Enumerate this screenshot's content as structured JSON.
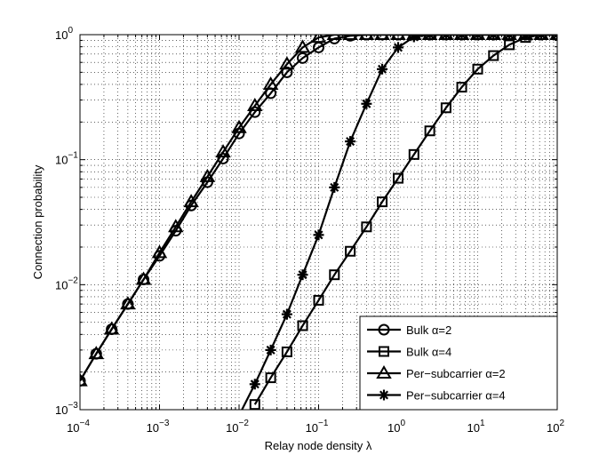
{
  "chart_data": {
    "type": "line",
    "title": "",
    "xlabel": "Relay node density λ",
    "ylabel": "Connection probability",
    "xscale": "log",
    "yscale": "log",
    "xlim": [
      0.0001,
      100
    ],
    "ylim": [
      0.001,
      1
    ],
    "grid": true,
    "legend_position": "bottom-right",
    "x_tick_labels": [
      {
        "base": "10",
        "exp": "−4",
        "value": 0.0001
      },
      {
        "base": "10",
        "exp": "−3",
        "value": 0.001
      },
      {
        "base": "10",
        "exp": "−2",
        "value": 0.01
      },
      {
        "base": "10",
        "exp": "−1",
        "value": 0.1
      },
      {
        "base": "10",
        "exp": "0",
        "value": 1
      },
      {
        "base": "10",
        "exp": "1",
        "value": 10
      },
      {
        "base": "10",
        "exp": "2",
        "value": 100
      }
    ],
    "y_tick_labels": [
      {
        "base": "10",
        "exp": "−3",
        "value": 0.001
      },
      {
        "base": "10",
        "exp": "−2",
        "value": 0.01
      },
      {
        "base": "10",
        "exp": "−1",
        "value": 0.1
      },
      {
        "base": "10",
        "exp": "0",
        "value": 1
      }
    ],
    "series": [
      {
        "name": "Bulk α=2",
        "marker": "circle",
        "points": [
          [
            0.0001,
            0.0017
          ],
          [
            0.00016,
            0.0028
          ],
          [
            0.00025,
            0.0044
          ],
          [
            0.0004,
            0.007
          ],
          [
            0.00063,
            0.011
          ],
          [
            0.001,
            0.017
          ],
          [
            0.0016,
            0.027
          ],
          [
            0.0025,
            0.043
          ],
          [
            0.004,
            0.066
          ],
          [
            0.0063,
            0.102
          ],
          [
            0.01,
            0.162
          ],
          [
            0.0158,
            0.24
          ],
          [
            0.025,
            0.34
          ],
          [
            0.04,
            0.5
          ],
          [
            0.063,
            0.65
          ],
          [
            0.1,
            0.79
          ],
          [
            0.158,
            0.93
          ],
          [
            0.25,
            0.98
          ],
          [
            0.4,
            1.0
          ],
          [
            0.63,
            1.0
          ],
          [
            1,
            1.0
          ],
          [
            1.58,
            1.0
          ],
          [
            2.5,
            1.0
          ],
          [
            4,
            1.0
          ],
          [
            6.3,
            1.0
          ],
          [
            10,
            1.0
          ],
          [
            15.8,
            1.0
          ],
          [
            25,
            1.0
          ],
          [
            40,
            1.0
          ],
          [
            63,
            1.0
          ],
          [
            100,
            1.0
          ]
        ]
      },
      {
        "name": "Bulk α=4",
        "marker": "square",
        "points": [
          [
            0.0158,
            0.0011
          ],
          [
            0.025,
            0.0018
          ],
          [
            0.04,
            0.0029
          ],
          [
            0.063,
            0.0047
          ],
          [
            0.1,
            0.0075
          ],
          [
            0.158,
            0.012
          ],
          [
            0.25,
            0.0185
          ],
          [
            0.4,
            0.029
          ],
          [
            0.63,
            0.046
          ],
          [
            1,
            0.071
          ],
          [
            1.58,
            0.11
          ],
          [
            2.5,
            0.17
          ],
          [
            4,
            0.26
          ],
          [
            6.3,
            0.38
          ],
          [
            10,
            0.53
          ],
          [
            15.8,
            0.68
          ],
          [
            25,
            0.83
          ],
          [
            40,
            0.95
          ],
          [
            63,
            1.0
          ],
          [
            100,
            1.0
          ]
        ]
      },
      {
        "name": "Per−subcarrier α=2",
        "marker": "triangle",
        "points": [
          [
            0.0001,
            0.0017
          ],
          [
            0.00016,
            0.0028
          ],
          [
            0.00025,
            0.0044
          ],
          [
            0.0004,
            0.007
          ],
          [
            0.00063,
            0.011
          ],
          [
            0.001,
            0.018
          ],
          [
            0.0016,
            0.029
          ],
          [
            0.0025,
            0.046
          ],
          [
            0.004,
            0.073
          ],
          [
            0.0063,
            0.115
          ],
          [
            0.01,
            0.18
          ],
          [
            0.0158,
            0.27
          ],
          [
            0.025,
            0.4
          ],
          [
            0.04,
            0.58
          ],
          [
            0.063,
            0.79
          ],
          [
            0.1,
            0.95
          ],
          [
            0.158,
            1.0
          ],
          [
            0.25,
            1.0
          ],
          [
            0.4,
            1.0
          ],
          [
            0.63,
            1.0
          ],
          [
            1,
            1.0
          ],
          [
            1.58,
            1.0
          ],
          [
            2.5,
            1.0
          ],
          [
            4,
            1.0
          ],
          [
            6.3,
            1.0
          ],
          [
            10,
            1.0
          ],
          [
            15.8,
            1.0
          ],
          [
            25,
            1.0
          ],
          [
            40,
            1.0
          ],
          [
            63,
            1.0
          ],
          [
            100,
            1.0
          ]
        ]
      },
      {
        "name": "Per−subcarrier α=4",
        "marker": "asterisk",
        "points": [
          [
            0.01,
            0.0009
          ],
          [
            0.0158,
            0.0016
          ],
          [
            0.025,
            0.003
          ],
          [
            0.04,
            0.0058
          ],
          [
            0.063,
            0.012
          ],
          [
            0.1,
            0.025
          ],
          [
            0.158,
            0.06
          ],
          [
            0.25,
            0.14
          ],
          [
            0.4,
            0.28
          ],
          [
            0.63,
            0.53
          ],
          [
            1,
            0.79
          ],
          [
            1.58,
            0.96
          ],
          [
            2.5,
            1.0
          ],
          [
            4,
            1.0
          ],
          [
            6.3,
            1.0
          ],
          [
            10,
            1.0
          ],
          [
            15.8,
            1.0
          ],
          [
            25,
            1.0
          ],
          [
            40,
            1.0
          ],
          [
            63,
            1.0
          ],
          [
            100,
            1.0
          ]
        ]
      }
    ]
  }
}
